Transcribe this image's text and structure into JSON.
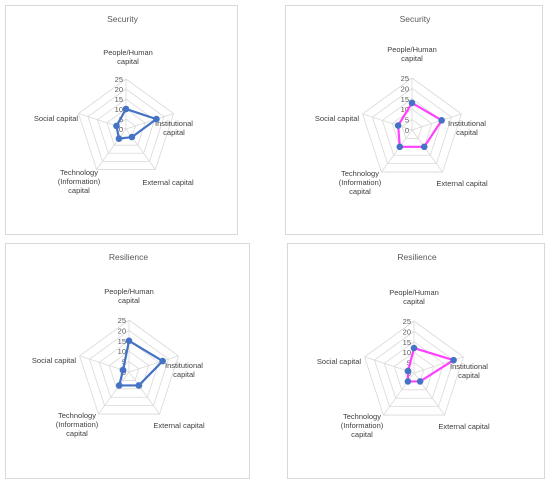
{
  "chart_data": [
    {
      "type": "radar",
      "title": "Security",
      "categories": [
        "People/Human capital",
        "Institutional capital",
        "External capital",
        "Technology (Information) capital",
        "Social capital"
      ],
      "axis_label_lines": [
        [
          "People/Human",
          "capital"
        ],
        [
          "Institutional",
          "capital"
        ],
        [
          "External capital"
        ],
        [
          "Technology",
          "(Information)",
          "capital"
        ],
        [
          "Social capital"
        ]
      ],
      "rticks": [
        "0",
        "5",
        "10",
        "15",
        "20",
        "25"
      ],
      "rlim": [
        0,
        25
      ],
      "series": [
        {
          "values": [
            10,
            16,
            5,
            6,
            5
          ],
          "color": "#4472c4"
        }
      ]
    },
    {
      "type": "radar",
      "title": "Security",
      "categories": [
        "People/Human capital",
        "Institutional capital",
        "External capital",
        "Technology (Information) capital",
        "Social capital"
      ],
      "axis_label_lines": [
        [
          "People/Human",
          "capital"
        ],
        [
          "Institutional",
          "capital"
        ],
        [
          "External capital"
        ],
        [
          "Technology",
          "(Information)",
          "capital"
        ],
        [
          "Social capital"
        ]
      ],
      "rticks": [
        "0",
        "5",
        "10",
        "15",
        "20",
        "25"
      ],
      "rlim": [
        0,
        25
      ],
      "series": [
        {
          "values": [
            13,
            15,
            10,
            10,
            7
          ],
          "color": "#ff40ff"
        }
      ]
    },
    {
      "type": "radar",
      "title": "Resilience",
      "categories": [
        "People/Human capital",
        "Institutional capital",
        "External capital",
        "Technology (Information) capital",
        "Social capital"
      ],
      "axis_label_lines": [
        [
          "People/Human",
          "capital"
        ],
        [
          "Institutional",
          "capital"
        ],
        [
          "External capital"
        ],
        [
          "Technology",
          "(Information)",
          "capital"
        ],
        [
          "Social capital"
        ]
      ],
      "rticks": [
        "0",
        "5",
        "10",
        "15",
        "20",
        "25"
      ],
      "rlim": [
        0,
        25
      ],
      "series": [
        {
          "values": [
            15,
            17,
            8,
            8,
            3
          ],
          "color": "#4472c4"
        }
      ]
    },
    {
      "type": "radar",
      "title": "Resilience",
      "categories": [
        "People/Human capital",
        "Institutional capital",
        "External capital",
        "Technology (Information) capital",
        "Social capital"
      ],
      "axis_label_lines": [
        [
          "People/Human",
          "capital"
        ],
        [
          "Institutional",
          "capital"
        ],
        [
          "External capital"
        ],
        [
          "Technology",
          "(Information)",
          "capital"
        ],
        [
          "Social capital"
        ]
      ],
      "rticks": [
        "0",
        "5",
        "10",
        "15",
        "20",
        "25"
      ],
      "rlim": [
        0,
        25
      ],
      "series": [
        {
          "values": [
            12,
            20,
            5,
            5,
            3
          ],
          "color": "#ff40ff"
        }
      ]
    }
  ]
}
